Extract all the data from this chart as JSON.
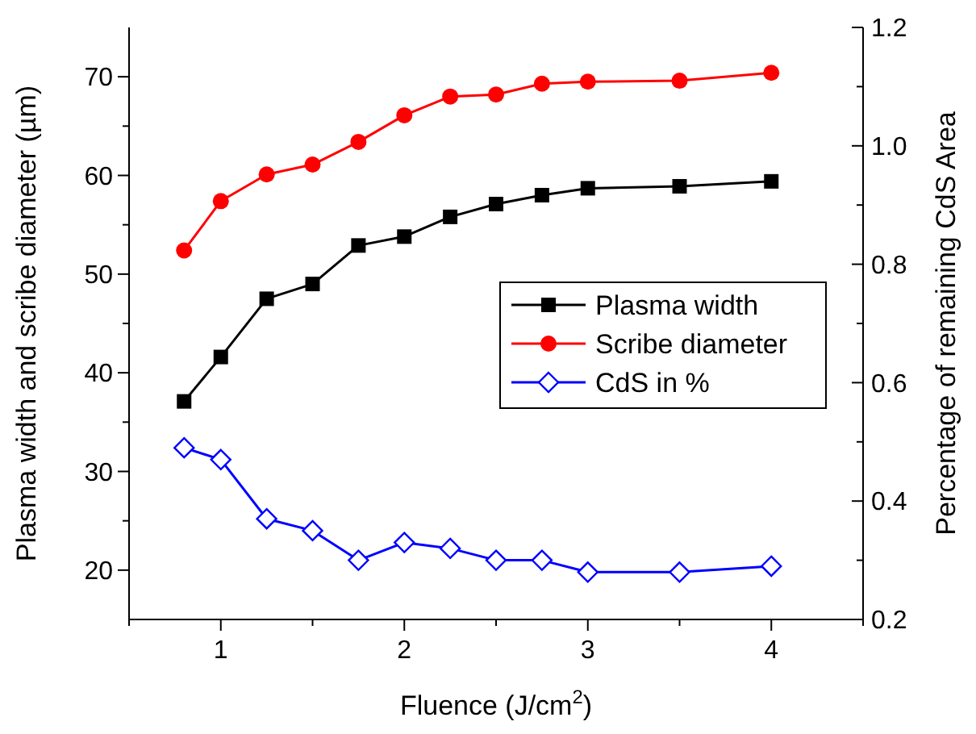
{
  "chart_data": {
    "type": "line",
    "xlabel": "Fluence (J/cm$^{2}$)",
    "ylabel": "Plasma width and scribe diameter (µm)",
    "y2label": "Percentage of remaining CdS Area",
    "x": [
      0.8,
      1,
      1.25,
      1.5,
      1.75,
      2,
      2.25,
      2.5,
      2.75,
      3,
      3.5,
      4
    ],
    "series": [
      {
        "name": "Plasma width",
        "color": "#000000",
        "marker": "square",
        "values": [
          37.1,
          41.6,
          47.5,
          49.0,
          52.9,
          53.8,
          55.8,
          57.1,
          58.0,
          58.7,
          58.9,
          59.4
        ]
      },
      {
        "name": "Scribe diameter",
        "color": "#ff0000",
        "marker": "circle",
        "values": [
          52.4,
          57.4,
          60.1,
          61.1,
          63.4,
          66.1,
          68.0,
          68.2,
          69.3,
          69.5,
          69.6,
          70.4
        ]
      },
      {
        "name": "CdS in %",
        "color": "#0000ff",
        "marker": "diamond",
        "axis": "y2",
        "values": [
          0.49,
          0.47,
          0.37,
          0.35,
          0.3,
          0.33,
          0.32,
          0.3,
          0.3,
          0.28,
          0.28,
          0.29
        ]
      }
    ],
    "xlim": [
      0.5,
      4.5
    ],
    "xticks": [
      1,
      2,
      3,
      4
    ],
    "ylim": [
      15,
      75
    ],
    "yticks": [
      20,
      30,
      40,
      50,
      60,
      70
    ],
    "y2lim": [
      0.2,
      1.2
    ],
    "y2ticks": [
      {
        "value": 0.2,
        "label": "0.2"
      },
      {
        "value": 0.4,
        "label": "0.4"
      },
      {
        "value": 0.6,
        "label": "0.6"
      },
      {
        "value": 0.8,
        "label": "0.8"
      },
      {
        "value": 1.0,
        "label": "1.0"
      },
      {
        "value": 1.2,
        "label": "1.2"
      }
    ],
    "legend": "right",
    "grid": false
  }
}
